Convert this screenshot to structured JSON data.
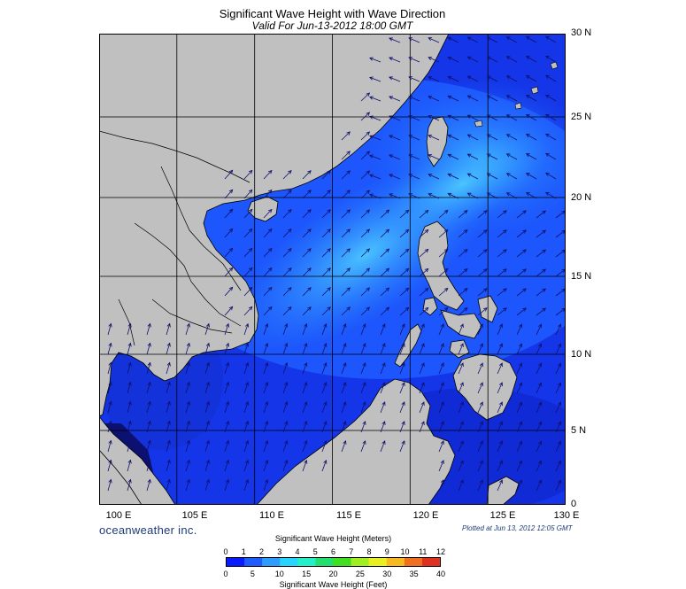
{
  "title": "Significant Wave Height with Wave Direction",
  "subtitle": "Valid For Jun-13-2012 18:00 GMT",
  "brand": "oceanweather inc.",
  "plotted": "Plotted at Jun 13, 2012 12:05 GMT",
  "lat_labels": [
    "30 N",
    "25 N",
    "20 N",
    "15 N",
    "10 N",
    "5 N",
    "0"
  ],
  "lon_labels": [
    "100 E",
    "105 E",
    "110 E",
    "115 E",
    "120 E",
    "125 E",
    "130 E"
  ],
  "legend": {
    "meters_title": "Significant Wave Height (Meters)",
    "feet_title": "Significant Wave Height (Feet)",
    "meters_ticks": [
      "0",
      "1",
      "2",
      "3",
      "4",
      "5",
      "6",
      "7",
      "8",
      "9",
      "10",
      "11",
      "12"
    ],
    "feet_ticks": [
      "0",
      "5",
      "10",
      "15",
      "20",
      "25",
      "30",
      "35",
      "40"
    ],
    "colors": [
      "#0a1cff",
      "#1f5cff",
      "#2c9cff",
      "#27d4ff",
      "#21f0c8",
      "#22e070",
      "#40e020",
      "#a0f020",
      "#e8f020",
      "#f8b820",
      "#f07020",
      "#e03020"
    ]
  },
  "colors": {
    "land": "#c0c0c0",
    "ocean_dark": "#0c1070",
    "ocean_base": "#1436e8",
    "ocean_mid": "#1f6cff",
    "ocean_light": "#33a8ff",
    "ocean_lighter": "#42c2ff",
    "grid": "#000000"
  }
}
